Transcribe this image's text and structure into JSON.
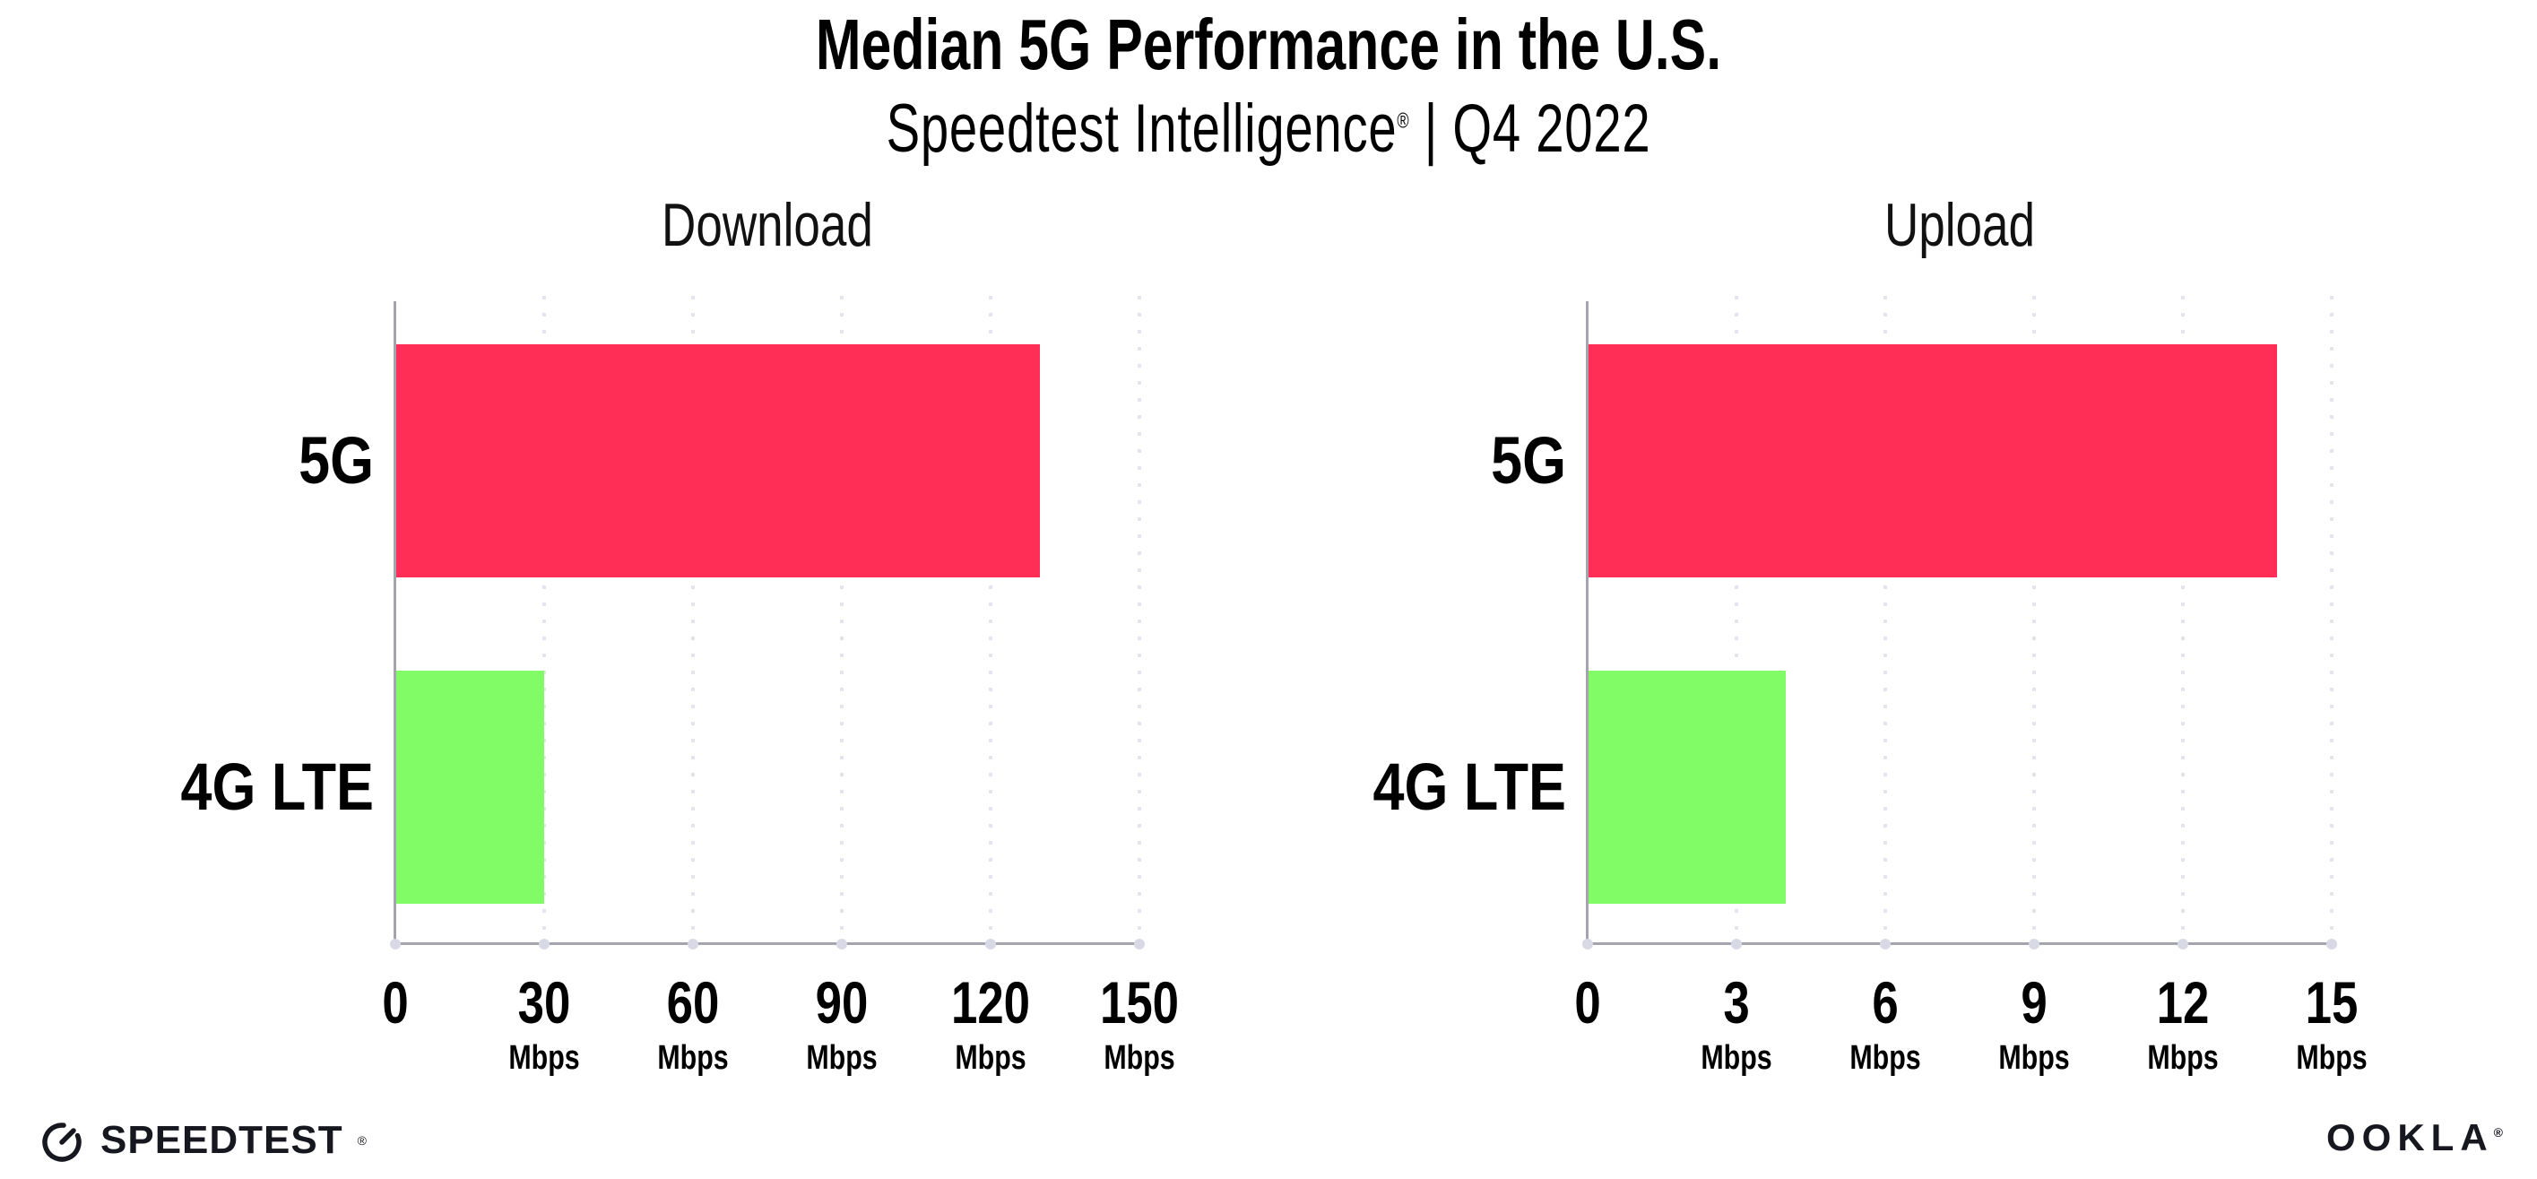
{
  "header": {
    "title": "Median 5G Performance in the U.S.",
    "subtitle_brand": "Speedtest Intelligence",
    "subtitle_reg": "®",
    "subtitle_rest": " | Q4 2022"
  },
  "colors": {
    "bar_5g": "#FE2E56",
    "bar_4g_lte": "#81FB66",
    "axis_line": "#A4A4AE",
    "gridline": "#E4E4EF",
    "tick_dot": "#D9D9E6",
    "text": "#000000"
  },
  "chart_data": [
    {
      "type": "bar",
      "orientation": "horizontal",
      "title": "Download",
      "categories": [
        "5G",
        "4G LTE"
      ],
      "values": [
        130,
        30
      ],
      "unit": "Mbps",
      "xlim": [
        0,
        150
      ],
      "xticks": [
        0,
        30,
        60,
        90,
        120,
        150
      ],
      "bar_colors": [
        "#FE2E56",
        "#81FB66"
      ],
      "grid": "dotted-vertical",
      "legend": "none"
    },
    {
      "type": "bar",
      "orientation": "horizontal",
      "title": "Upload",
      "categories": [
        "5G",
        "4G LTE"
      ],
      "values": [
        13.9,
        4
      ],
      "unit": "Mbps",
      "xlim": [
        0,
        15
      ],
      "xticks": [
        0,
        3,
        6,
        9,
        12,
        15
      ],
      "bar_colors": [
        "#FE2E56",
        "#81FB66"
      ],
      "grid": "dotted-vertical",
      "legend": "none"
    }
  ],
  "footer": {
    "speedtest_label": "SPEEDTEST",
    "speedtest_reg": "®",
    "ookla_label": "OOKLA",
    "ookla_reg": "®"
  }
}
